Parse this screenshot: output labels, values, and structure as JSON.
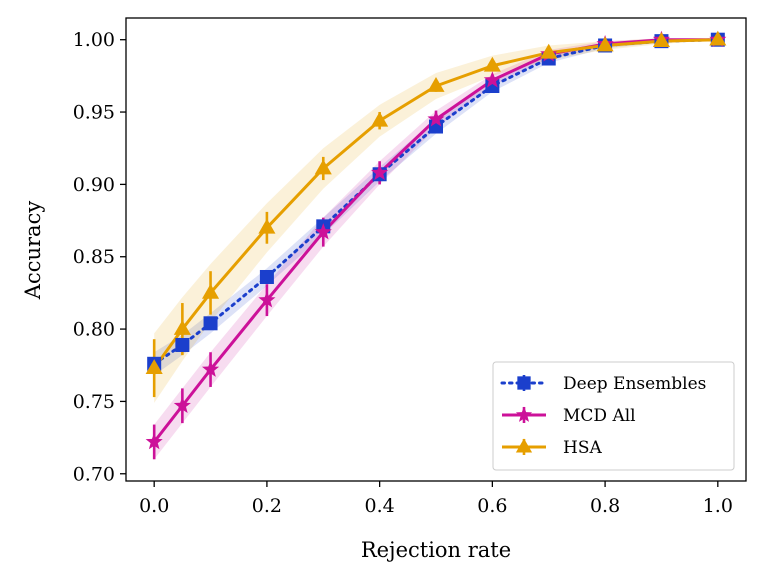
{
  "chart_data": {
    "type": "line",
    "title": "",
    "xlabel": "Rejection rate",
    "ylabel": "Accuracy",
    "xlim": [
      -0.05,
      1.05
    ],
    "ylim": [
      0.695,
      1.015
    ],
    "x_ticks": [
      0.0,
      0.2,
      0.4,
      0.6,
      0.8,
      1.0
    ],
    "x_tick_labels": [
      "0.0",
      "0.2",
      "0.4",
      "0.6",
      "0.8",
      "1.0"
    ],
    "y_ticks": [
      0.7,
      0.75,
      0.8,
      0.85,
      0.9,
      0.95,
      1.0
    ],
    "y_tick_labels": [
      "0.70",
      "0.75",
      "0.80",
      "0.85",
      "0.90",
      "0.95",
      "1.00"
    ],
    "grid": false,
    "legend_position": "bottom-right",
    "x": [
      0.0,
      0.05,
      0.1,
      0.2,
      0.3,
      0.4,
      0.5,
      0.6,
      0.7,
      0.8,
      0.9,
      1.0
    ],
    "series": [
      {
        "name": "Deep Ensembles",
        "color": "#1b3fcc",
        "line_style": "dotted",
        "marker": "square",
        "values": [
          0.776,
          0.789,
          0.804,
          0.836,
          0.871,
          0.907,
          0.94,
          0.968,
          0.987,
          0.996,
          0.999,
          1.0
        ],
        "errors": [
          0.004,
          0.003,
          0.003,
          0.003,
          0.003,
          0.002,
          0.002,
          0.002,
          0.001,
          0.001,
          0.0005,
          0.0
        ],
        "band": [
          0.008,
          0.007,
          0.007,
          0.006,
          0.006,
          0.005,
          0.005,
          0.004,
          0.003,
          0.002,
          0.001,
          0.0
        ]
      },
      {
        "name": "MCD All",
        "color": "#cc1199",
        "line_style": "solid",
        "marker": "star",
        "values": [
          0.722,
          0.747,
          0.772,
          0.82,
          0.867,
          0.908,
          0.945,
          0.972,
          0.99,
          0.997,
          1.0,
          1.0
        ],
        "errors": [
          0.012,
          0.012,
          0.012,
          0.011,
          0.01,
          0.008,
          0.006,
          0.004,
          0.003,
          0.002,
          0.001,
          0.0
        ],
        "band": [
          0.012,
          0.012,
          0.012,
          0.011,
          0.01,
          0.008,
          0.006,
          0.004,
          0.003,
          0.002,
          0.001,
          0.0
        ]
      },
      {
        "name": "HSA",
        "color": "#e69f00",
        "line_style": "solid",
        "marker": "triangle",
        "values": [
          0.773,
          0.8,
          0.825,
          0.87,
          0.911,
          0.944,
          0.968,
          0.982,
          0.991,
          0.996,
          0.999,
          1.0
        ],
        "errors": [
          0.02,
          0.018,
          0.015,
          0.011,
          0.008,
          0.006,
          0.004,
          0.003,
          0.002,
          0.001,
          0.0005,
          0.0
        ],
        "band": [
          0.024,
          0.022,
          0.02,
          0.017,
          0.014,
          0.011,
          0.009,
          0.007,
          0.005,
          0.003,
          0.002,
          0.0
        ]
      }
    ]
  }
}
